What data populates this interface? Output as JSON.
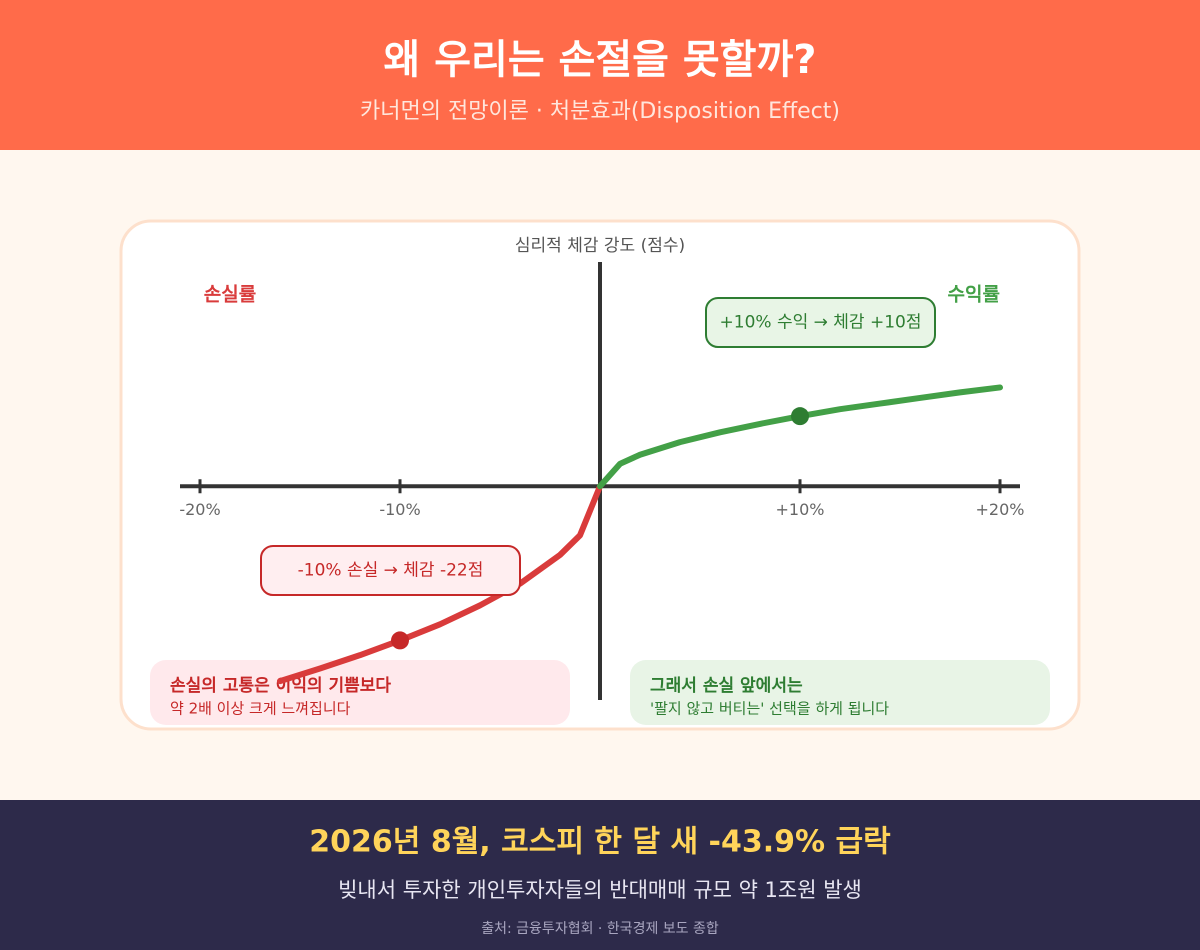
{
  "header": {
    "title": "왜 우리는 손절을 못할까?",
    "subtitle": "카너먼의 전망이론 · 처분효과(Disposition Effect)"
  },
  "chart_data": {
    "type": "line",
    "y_axis_label": "심리적 체감 강도 (점수)",
    "x": [
      -16,
      -14,
      -12,
      -10,
      -8,
      -6,
      -4,
      -2,
      -1,
      0,
      1,
      2,
      4,
      6,
      8,
      10,
      12,
      14,
      16,
      18,
      20
    ],
    "series": [
      {
        "name": "손실률",
        "color": "#d93b3b",
        "values": [
          -27.8,
          -26.0,
          -24.1,
          -22,
          -19.7,
          -17.0,
          -13.9,
          -9.8,
          -7.0,
          0,
          null,
          null,
          null,
          null,
          null,
          null,
          null,
          null,
          null,
          null,
          null
        ]
      },
      {
        "name": "수익률",
        "color": "#43a047",
        "values": [
          null,
          null,
          null,
          null,
          null,
          null,
          null,
          null,
          null,
          0,
          3.2,
          4.5,
          6.3,
          7.7,
          8.9,
          10,
          11.0,
          11.8,
          12.6,
          13.4,
          14.1
        ]
      }
    ],
    "xlim": [
      -21,
      21
    ],
    "ylim": [
      -30.5,
      32
    ],
    "xticks": [
      {
        "value": -20,
        "label": "-20%"
      },
      {
        "value": -10,
        "label": "-10%"
      },
      {
        "value": 10,
        "label": "+10%"
      },
      {
        "value": 20,
        "label": "+20%"
      }
    ],
    "annotations": [
      {
        "text": "+10% 수익 → 체감 +10점",
        "x": 10,
        "y": 10
      },
      {
        "text": "-10% 손실 → 체감 -22점",
        "x": -10,
        "y": -22
      }
    ]
  },
  "notes": [
    {
      "title": "손실의 고통은 이익의 기쁨보다",
      "text": "약 2배 이상 크게 느껴집니다"
    },
    {
      "title": "그래서 손실 앞에서는",
      "text": "'팔지 않고 버티는' 선택을 하게 됩니다"
    }
  ],
  "footer": {
    "headline": "2026년 8월, 코스피 한 달 새 -43.9% 급락",
    "detail": "빚내서 투자한 개인투자자들의 반대매매 규모 약 1조원 발생",
    "source": "출처: 금융투자협회 · 한국경제 보도 종합"
  }
}
